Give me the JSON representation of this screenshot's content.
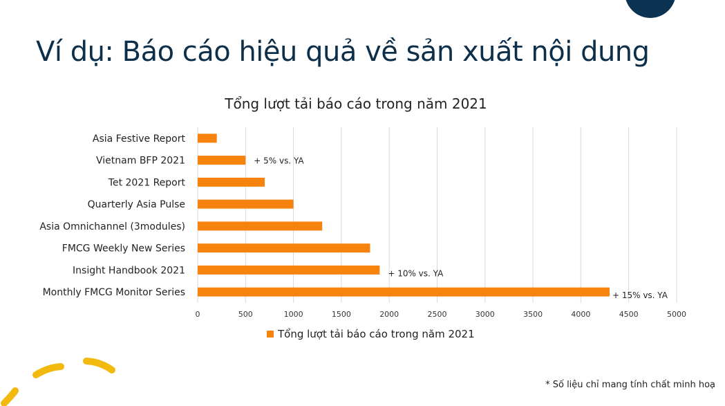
{
  "slide": {
    "title": "Ví dụ: Báo cáo hiệu quả về sản xuất nội dung",
    "footnote": "* Số liệu chỉ mang tính chất minh hoạ"
  },
  "colors": {
    "bar": "#f7830f",
    "title": "#0d2f4a",
    "circle": "#0d3352",
    "deco": "#f2b90f"
  },
  "chart_data": {
    "type": "bar",
    "orientation": "horizontal",
    "title": "Tổng lượt tải báo cáo trong năm 2021",
    "categories": [
      "Asia Festive Report",
      "Vietnam BFP 2021",
      "Tet 2021 Report",
      "Quarterly Asia Pulse",
      "Asia Omnichannel (3modules)",
      "FMCG Weekly New Series",
      "Insight Handbook 2021",
      "Monthly FMCG Monitor Series"
    ],
    "series": [
      {
        "name": "Tổng lượt tải báo cáo trong năm 2021",
        "values": [
          200,
          500,
          700,
          1000,
          1300,
          1800,
          1900,
          4300
        ]
      }
    ],
    "annotations": [
      "",
      "+ 5% vs. YA",
      "",
      "",
      "",
      "",
      "+ 10% vs. YA",
      "+ 15% vs. YA"
    ],
    "xlim": [
      0,
      5000
    ],
    "xticks": [
      0,
      500,
      1000,
      1500,
      2000,
      2500,
      3000,
      3500,
      4000,
      4500,
      5000
    ],
    "grid": true,
    "legend_position": "bottom"
  }
}
